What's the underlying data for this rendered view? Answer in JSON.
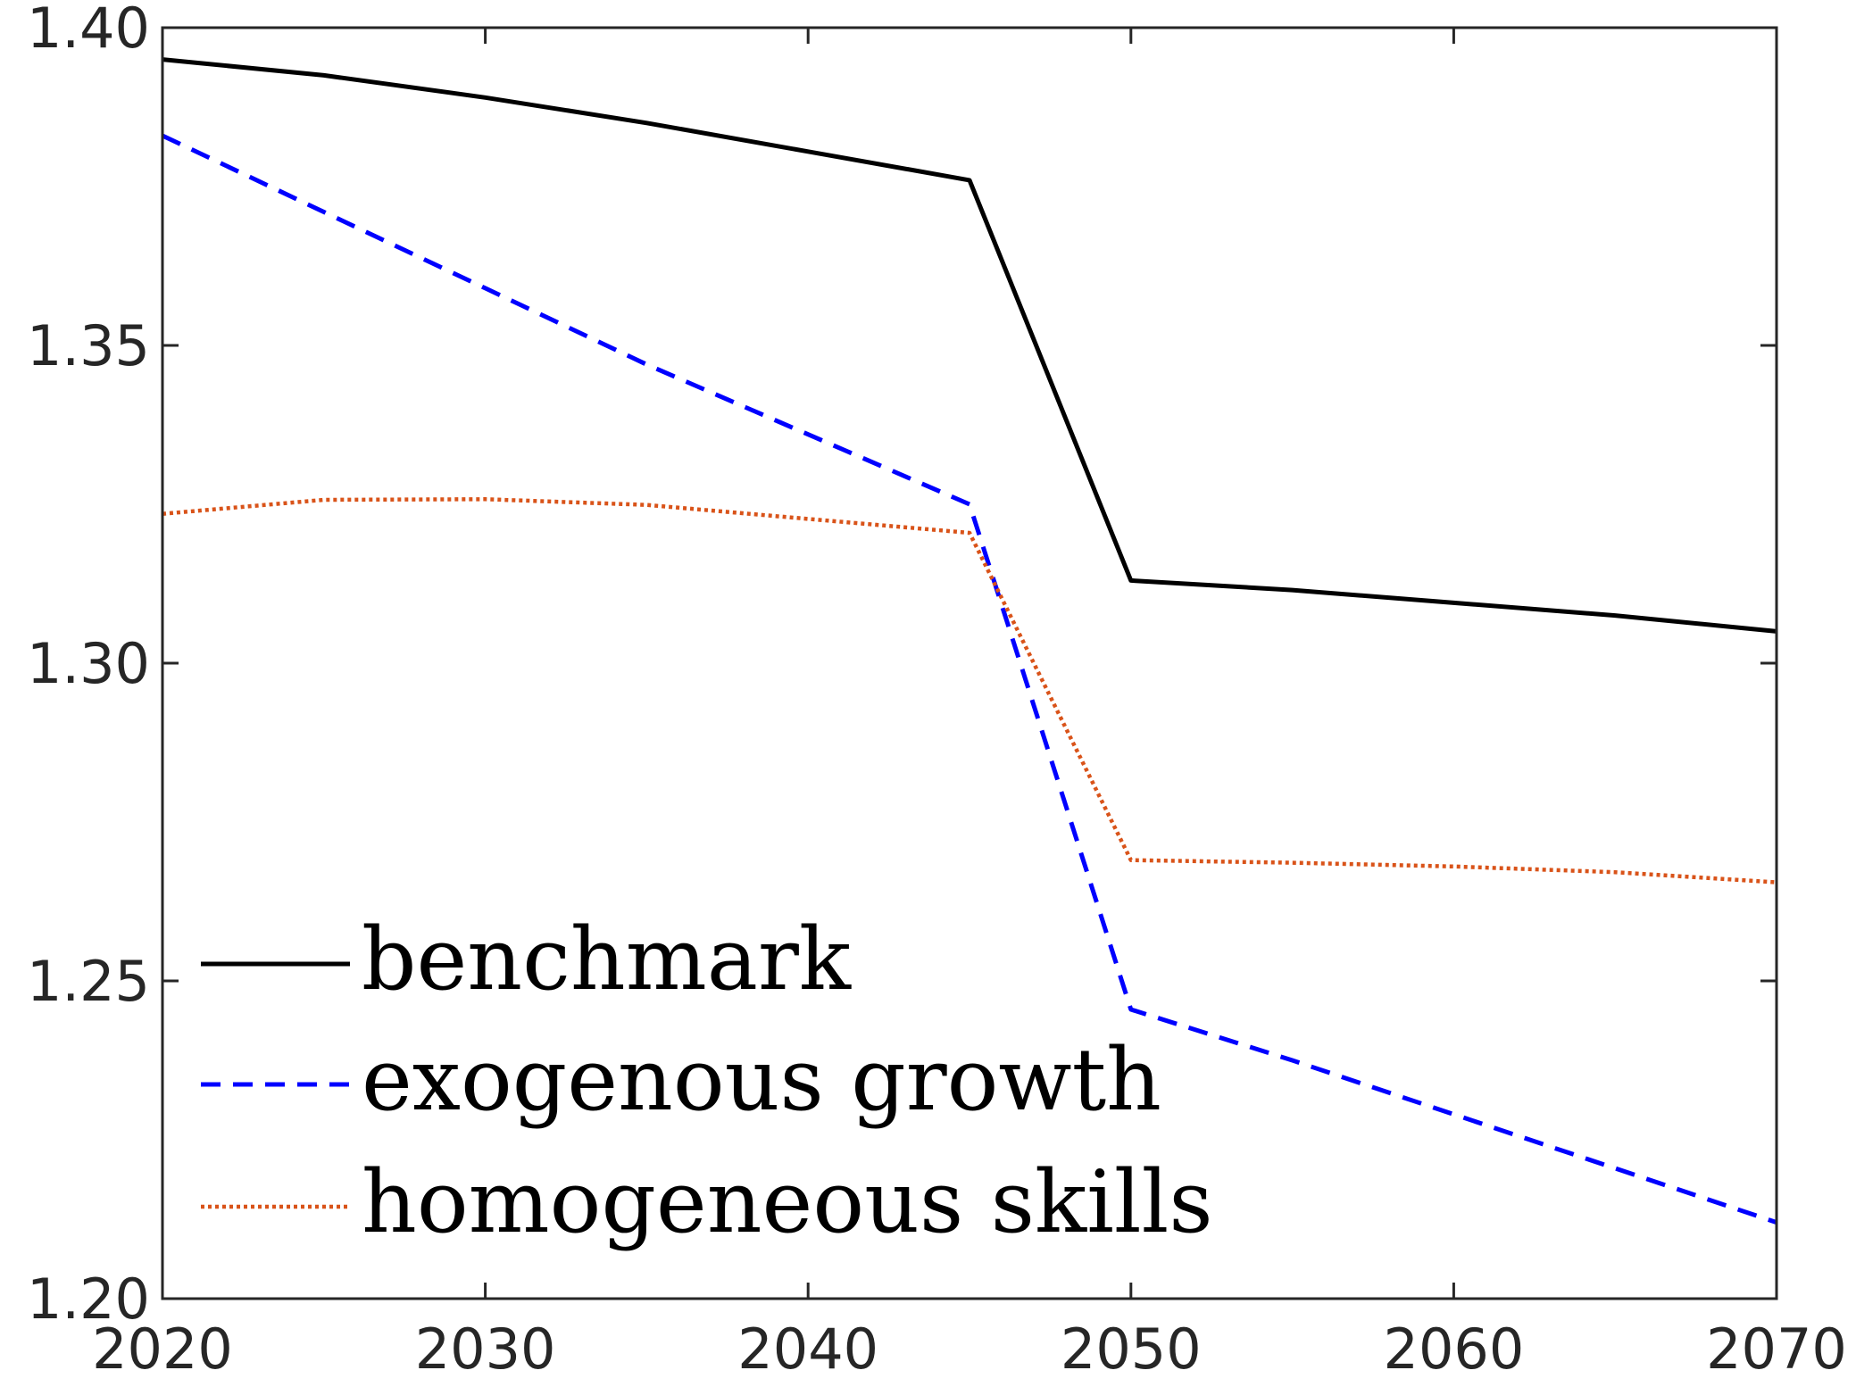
{
  "chart_data": {
    "type": "line",
    "title": "",
    "xlabel": "",
    "ylabel": "",
    "x": [
      2020,
      2025,
      2030,
      2035,
      2040,
      2045,
      2050,
      2055,
      2060,
      2065,
      2070
    ],
    "xlim": [
      2020,
      2070
    ],
    "ylim": [
      1.2,
      1.4
    ],
    "xticks": [
      2020,
      2030,
      2040,
      2050,
      2060,
      2070
    ],
    "xtick_labels": [
      "2020",
      "2030",
      "2040",
      "2050",
      "2060",
      "2070"
    ],
    "yticks": [
      1.2,
      1.25,
      1.3,
      1.35,
      1.4
    ],
    "ytick_labels": [
      "1.20",
      "1.25",
      "1.30",
      "1.35",
      "1.40"
    ],
    "grid": false,
    "legend_position": "bottom-left",
    "series": [
      {
        "name": "benchmark",
        "style": "solid",
        "color": "#000000",
        "values": [
          1.395,
          1.3925,
          1.389,
          1.385,
          1.3805,
          1.376,
          1.313,
          1.3115,
          1.3095,
          1.3075,
          1.305
        ]
      },
      {
        "name": "exogenous growth",
        "style": "dashed",
        "color": "#0000ff",
        "values": [
          1.383,
          1.371,
          1.359,
          1.347,
          1.336,
          1.325,
          1.2455,
          1.2375,
          1.229,
          1.2205,
          1.212
        ]
      },
      {
        "name": "homogeneous skills",
        "style": "dotted",
        "color": "#d95319",
        "values": [
          1.3235,
          1.3257,
          1.3258,
          1.3249,
          1.3227,
          1.3205,
          1.269,
          1.2686,
          1.268,
          1.2671,
          1.2655
        ]
      }
    ]
  }
}
